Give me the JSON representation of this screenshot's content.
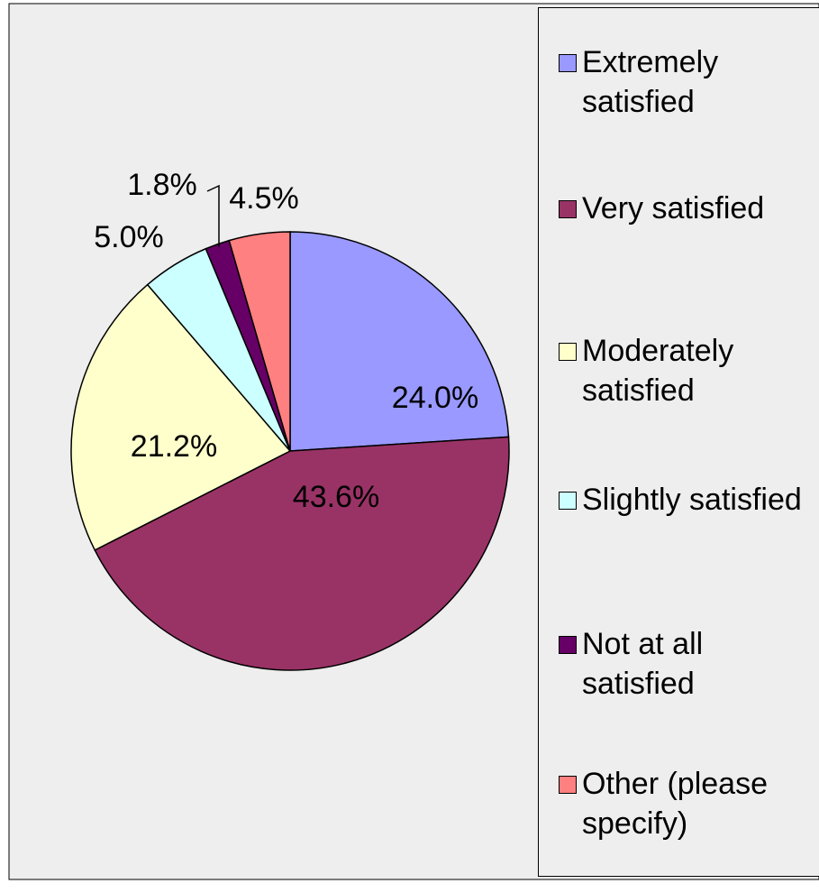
{
  "chart_data": {
    "type": "pie",
    "categories": [
      "Extremely satisfied",
      "Very satisfied",
      "Moderately satisfied",
      "Slightly satisfied",
      "Not at all satisfied",
      "Other (please specify)"
    ],
    "values": [
      24.0,
      43.6,
      21.2,
      5.0,
      1.8,
      4.5
    ],
    "value_labels": [
      "24.0%",
      "43.6%",
      "21.2%",
      "5.0%",
      "1.8%",
      "4.5%"
    ],
    "colors": [
      "#9999ff",
      "#993366",
      "#ffffcc",
      "#ccffff",
      "#660066",
      "#ff8080"
    ],
    "legend": "right"
  }
}
